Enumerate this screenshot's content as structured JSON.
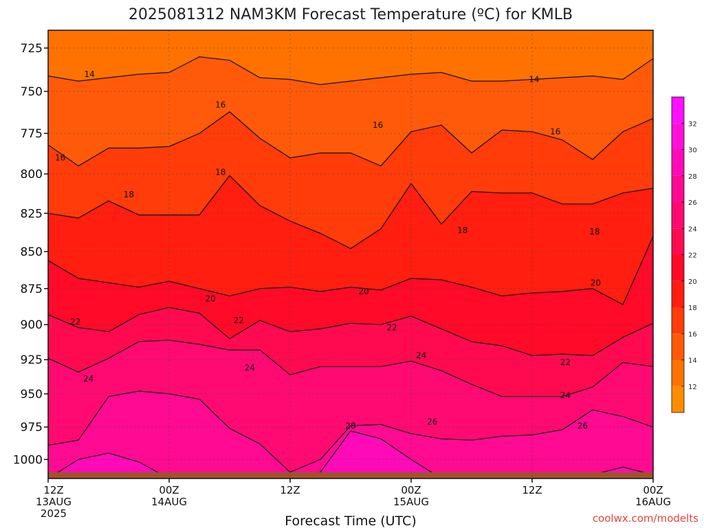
{
  "title": "2025081312 NAM3KM Forecast Temperature (ºC) for KMLB",
  "credit": "coolwx.com/modelts",
  "chart_data": {
    "type": "heatmap",
    "title": "2025081312 NAM3KM Forecast Temperature (ºC) for KMLB",
    "xlabel": "Forecast Time (UTC)",
    "ylabel": "",
    "x_range_hours": [
      0,
      60
    ],
    "y_range_mb": [
      1015,
      715
    ],
    "y_scale": "log-pressure (inverted)",
    "grid": true,
    "y_ticks": [
      "725",
      "750",
      "775",
      "800",
      "825",
      "850",
      "875",
      "900",
      "925",
      "950",
      "975",
      "1000"
    ],
    "x_ticks": [
      {
        "hour": 0,
        "lines": [
          "12Z",
          "13AUG",
          "2025"
        ]
      },
      {
        "hour": 12,
        "lines": [
          "00Z",
          "14AUG"
        ]
      },
      {
        "hour": 24,
        "lines": [
          "12Z"
        ]
      },
      {
        "hour": 36,
        "lines": [
          "00Z",
          "15AUG"
        ]
      },
      {
        "hour": 48,
        "lines": [
          "12Z"
        ]
      },
      {
        "hour": 60,
        "lines": [
          "00Z",
          "16AUG"
        ]
      }
    ],
    "colorbar": {
      "levels": [
        12,
        14,
        16,
        18,
        20,
        22,
        24,
        26,
        28,
        30,
        32
      ],
      "range": [
        10,
        34
      ],
      "colors": [
        "#ff8c00",
        "#ff7200",
        "#ff5a0a",
        "#ff3c0a",
        "#ff1e10",
        "#ff0a28",
        "#ff0a50",
        "#ff0a72",
        "#ff0a92",
        "#ff0ab8",
        "#ff10d8",
        "#ff10ff"
      ]
    },
    "ground_pressure_mb": 1010,
    "hours": [
      0,
      3,
      6,
      9,
      12,
      15,
      18,
      21,
      24,
      27,
      30,
      33,
      36,
      39,
      42,
      45,
      48,
      51,
      54,
      57,
      60
    ],
    "isotherms": [
      {
        "level": 14,
        "pressure_mb": [
          741,
          744,
          742,
          740,
          739,
          730,
          732,
          742,
          743,
          746,
          744,
          742,
          740,
          739,
          744,
          744,
          743,
          742,
          741,
          743,
          731
        ]
      },
      {
        "level": 16,
        "pressure_mb": [
          782,
          795,
          784,
          784,
          783,
          775,
          762,
          778,
          790,
          787,
          787,
          795,
          774,
          770,
          787,
          773,
          774,
          779,
          791,
          774,
          766
        ]
      },
      {
        "level": 18,
        "pressure_mb": [
          825,
          828,
          817,
          826,
          826,
          826,
          801,
          820,
          830,
          838,
          848,
          835,
          806,
          832,
          811,
          812,
          812,
          819,
          819,
          812,
          809
        ]
      },
      {
        "level": 20,
        "pressure_mb": [
          856,
          868,
          871,
          874,
          870,
          875,
          880,
          875,
          874,
          877,
          874,
          876,
          868,
          869,
          874,
          880,
          878,
          877,
          875,
          886,
          840
        ]
      },
      {
        "level": 22,
        "pressure_mb": [
          893,
          902,
          905,
          893,
          888,
          892,
          910,
          897,
          905,
          903,
          899,
          900,
          894,
          903,
          912,
          915,
          922,
          921,
          922,
          909,
          899
        ]
      },
      {
        "level": 24,
        "pressure_mb": [
          924,
          934,
          924,
          912,
          911,
          914,
          918,
          918,
          936,
          930,
          930,
          930,
          926,
          933,
          943,
          952,
          952,
          952,
          945,
          927,
          930
        ]
      },
      {
        "level": 26,
        "pressure_mb": [
          989,
          985,
          952,
          948,
          950,
          954,
          976,
          988,
          1010,
          1000,
          974,
          973,
          980,
          984,
          985,
          982,
          981,
          977,
          962,
          967,
          975
        ]
      },
      {
        "level": 28,
        "pressure_mb": [
          1015,
          1000,
          995,
          1002,
          1015,
          1015,
          1015,
          1015,
          1015,
          1010,
          978,
          984,
          1000,
          1015,
          1015,
          1015,
          1015,
          1015,
          1012,
          1006,
          1012
        ]
      }
    ],
    "contour_labels": [
      {
        "value": "14",
        "hour": 4.1,
        "pressure_mb": 740
      },
      {
        "value": "14",
        "hour": 48.2,
        "pressure_mb": 743
      },
      {
        "value": "16",
        "hour": 1.2,
        "pressure_mb": 790
      },
      {
        "value": "16",
        "hour": 17.1,
        "pressure_mb": 758
      },
      {
        "value": "16",
        "hour": 32.7,
        "pressure_mb": 770
      },
      {
        "value": "16",
        "hour": 50.3,
        "pressure_mb": 774
      },
      {
        "value": "18",
        "hour": 8.0,
        "pressure_mb": 813
      },
      {
        "value": "18",
        "hour": 17.1,
        "pressure_mb": 799
      },
      {
        "value": "18",
        "hour": 41.1,
        "pressure_mb": 836
      },
      {
        "value": "18",
        "hour": 54.2,
        "pressure_mb": 837
      },
      {
        "value": "20",
        "hour": 16.1,
        "pressure_mb": 882
      },
      {
        "value": "20",
        "hour": 31.3,
        "pressure_mb": 877
      },
      {
        "value": "20",
        "hour": 54.3,
        "pressure_mb": 871
      },
      {
        "value": "22",
        "hour": 2.7,
        "pressure_mb": 898
      },
      {
        "value": "22",
        "hour": 18.9,
        "pressure_mb": 897
      },
      {
        "value": "22",
        "hour": 34.1,
        "pressure_mb": 902
      },
      {
        "value": "22",
        "hour": 51.3,
        "pressure_mb": 927
      },
      {
        "value": "24",
        "hour": 4.0,
        "pressure_mb": 939
      },
      {
        "value": "24",
        "hour": 20.0,
        "pressure_mb": 931
      },
      {
        "value": "24",
        "hour": 37.0,
        "pressure_mb": 922
      },
      {
        "value": "24",
        "hour": 51.3,
        "pressure_mb": 951
      },
      {
        "value": "26",
        "hour": 38.1,
        "pressure_mb": 971
      },
      {
        "value": "26",
        "hour": 53.0,
        "pressure_mb": 974
      },
      {
        "value": "28",
        "hour": 30.0,
        "pressure_mb": 974
      }
    ]
  }
}
